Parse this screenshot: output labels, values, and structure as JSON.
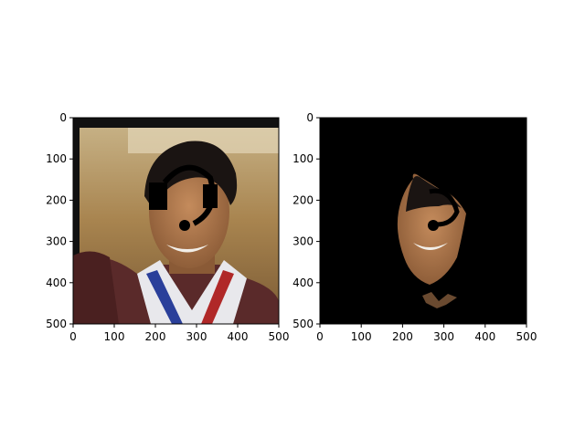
{
  "chart_data": [
    {
      "type": "image",
      "content": "photo of a smiling man with dark hair wearing a medal ribbon, with black occlusion marks drawn over eyes and face",
      "xlim": [
        0,
        500
      ],
      "ylim": [
        500,
        0
      ],
      "xticks": [
        0,
        100,
        200,
        300,
        400,
        500
      ],
      "yticks": [
        0,
        100,
        200,
        300,
        400,
        500
      ],
      "tick_labels": [
        "0",
        "100",
        "200",
        "300",
        "400",
        "500"
      ]
    },
    {
      "type": "image",
      "content": "segmented face mask: only the face region of the same photo visible, remaining area black",
      "xlim": [
        0,
        500
      ],
      "ylim": [
        500,
        0
      ],
      "xticks": [
        0,
        100,
        200,
        300,
        400,
        500
      ],
      "yticks": [
        0,
        100,
        200,
        300,
        400,
        500
      ],
      "tick_labels": [
        "0",
        "100",
        "200",
        "300",
        "400",
        "500"
      ]
    }
  ],
  "colors": {
    "background": "#ffffff",
    "axis": "#000000",
    "mask": "#000000",
    "skin": "#b07850",
    "hair": "#1a1412",
    "wall": "#b59a6a",
    "shirt": "#5a2a2a"
  }
}
